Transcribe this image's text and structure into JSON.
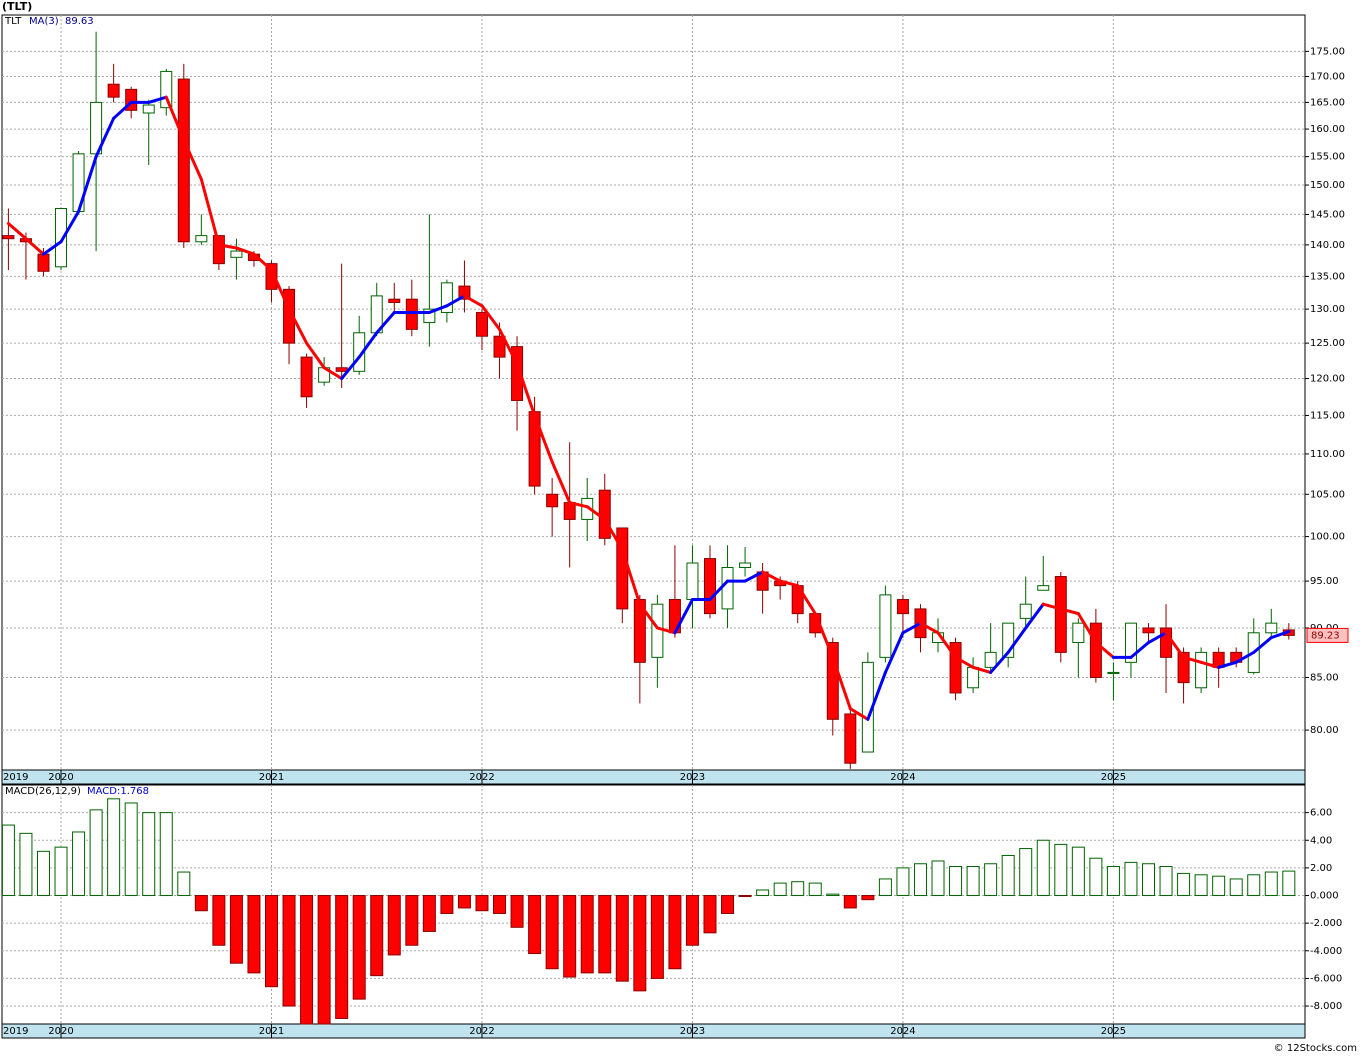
{
  "chart_data": [
    {
      "type": "candlestick",
      "title": "(TLT)",
      "ticker": "TLT",
      "categories": [
        "2019",
        null,
        null,
        "2020",
        null,
        null,
        null,
        null,
        null,
        null,
        null,
        null,
        null,
        null,
        null,
        "2021",
        null,
        null,
        null,
        null,
        null,
        null,
        null,
        null,
        null,
        null,
        null,
        "2022",
        null,
        null,
        null,
        null,
        null,
        null,
        null,
        null,
        null,
        null,
        null,
        "2023",
        null,
        null,
        null,
        null,
        null,
        null,
        null,
        null,
        null,
        null,
        null,
        "2024",
        null,
        null,
        null,
        null,
        null,
        null,
        null,
        null,
        null,
        null,
        null,
        "2025",
        null,
        null,
        null,
        null,
        null,
        null,
        null,
        null,
        null,
        null
      ],
      "open": [
        141.5,
        141,
        138.5,
        136.5,
        145.5,
        155.5,
        168.5,
        167.5,
        163,
        164,
        169.5,
        140.5,
        141.5,
        138,
        138.5,
        137,
        133,
        123,
        119.5,
        121.5,
        121,
        126.5,
        131.5,
        131.5,
        128,
        129.5,
        133.5,
        129.5,
        126,
        124.5,
        115.5,
        105,
        104,
        102,
        105.5,
        101,
        93,
        87,
        93,
        93,
        97.5,
        92,
        96.5,
        96,
        95,
        94.5,
        91.5,
        88.5,
        81.5,
        78,
        87,
        93,
        92,
        88.5,
        88.5,
        84,
        86,
        87,
        91,
        94,
        95.5,
        88.5,
        90.5,
        85.5,
        86.5,
        90,
        90,
        87.5,
        84,
        87.5,
        87.5,
        85.5,
        89.5,
        89.8
      ],
      "high": [
        146,
        142,
        139.5,
        146,
        156,
        179,
        172.5,
        168,
        165.5,
        171.5,
        172.5,
        145,
        141.5,
        141,
        139,
        137.5,
        133.5,
        123.5,
        123,
        137,
        129,
        134,
        134,
        134.5,
        145,
        134.5,
        137.5,
        130,
        128,
        126,
        117.5,
        107,
        111.5,
        107,
        107.5,
        101,
        93.5,
        93.5,
        99,
        99,
        99,
        99,
        98.8,
        97,
        95.5,
        95,
        91.5,
        89,
        82,
        87.5,
        94.5,
        93.5,
        92.5,
        91,
        89,
        87,
        90.5,
        90.5,
        95.5,
        97.8,
        96,
        91,
        92,
        86.5,
        90.5,
        90.5,
        92.5,
        88,
        88,
        88,
        88,
        91,
        92,
        90.5
      ],
      "low": [
        136,
        134.5,
        135,
        136,
        145,
        139,
        165,
        162,
        153.5,
        162.5,
        139.5,
        140,
        136,
        134.5,
        136.5,
        131,
        122,
        116,
        119,
        118.7,
        120.5,
        126,
        129.5,
        126,
        124.5,
        128,
        129.5,
        124,
        120,
        113,
        105,
        100,
        96.5,
        99.5,
        99,
        90.5,
        82.5,
        84,
        89,
        90,
        91,
        90,
        95.5,
        91.5,
        93,
        90.5,
        89,
        79.5,
        76.5,
        78,
        86.5,
        89,
        87.5,
        87.5,
        82.8,
        83.5,
        85.5,
        86,
        90,
        94,
        86.5,
        85,
        84.5,
        82.8,
        85,
        88.5,
        83.5,
        82.5,
        83.5,
        84,
        86,
        85.3,
        89,
        88.8
      ],
      "close": [
        141,
        140.5,
        135.8,
        146,
        155.5,
        165,
        166,
        163.5,
        164.5,
        171,
        140.5,
        141.5,
        137,
        139,
        137.5,
        133,
        125,
        117.5,
        121.5,
        121,
        126.5,
        132,
        131,
        127,
        130,
        134,
        131.5,
        126,
        123,
        117,
        106,
        103.5,
        102,
        104.5,
        99.8,
        92,
        86.5,
        92.5,
        89.5,
        97,
        91.5,
        96.5,
        97,
        94,
        94.5,
        91.5,
        89.5,
        81,
        77,
        86.5,
        93.5,
        91.5,
        89,
        89.5,
        83.5,
        86,
        87.5,
        90.5,
        92.5,
        94.5,
        87.5,
        90.5,
        85,
        85.5,
        90.5,
        89.5,
        87,
        84.5,
        87.5,
        86,
        86.5,
        89.5,
        90.5,
        89.23
      ],
      "up_color": "#006400",
      "down_color": "#ff0000",
      "ma": {
        "name": "MA(3)",
        "up_color": "#0000ff",
        "down_color": "#ff0000",
        "values": [
          143.5,
          141,
          138.5,
          140.5,
          145.5,
          155,
          162,
          165,
          165,
          166,
          158,
          151,
          140,
          139.5,
          138.5,
          136,
          130,
          125,
          121.5,
          120,
          123,
          126.5,
          129.5,
          129.5,
          129.5,
          130.5,
          132,
          130.5,
          127,
          122,
          115,
          109,
          104,
          103.5,
          102,
          98.5,
          92.5,
          90,
          89.5,
          93,
          93,
          95,
          95,
          96,
          95,
          94.5,
          91.5,
          87,
          82,
          81,
          85.5,
          89.5,
          90.5,
          89.5,
          87,
          86,
          85.5,
          87.5,
          90,
          92.5,
          92,
          91.5,
          88.5,
          87,
          87,
          88.5,
          89.5,
          87,
          86.5,
          86,
          86.5,
          87.5,
          89,
          89.63
        ]
      },
      "log": true,
      "ylim": [
        76.4,
        182.5
      ],
      "yticks": [
        {
          "value": 80,
          "label": "80.00"
        },
        {
          "value": 85,
          "label": "85.00"
        },
        {
          "value": 90,
          "label": "90.00"
        },
        {
          "value": 95,
          "label": "95.00"
        },
        {
          "value": 100,
          "label": "100.00"
        },
        {
          "value": 105,
          "label": "105.00"
        },
        {
          "value": 110,
          "label": "110.00"
        },
        {
          "value": 115,
          "label": "115.00"
        },
        {
          "value": 120,
          "label": "120.00"
        },
        {
          "value": 125,
          "label": "125.00"
        },
        {
          "value": 130,
          "label": "130.00"
        },
        {
          "value": 135,
          "label": "135.00"
        },
        {
          "value": 140,
          "label": "140.00"
        },
        {
          "value": 145,
          "label": "145.00"
        },
        {
          "value": 150,
          "label": "150.00"
        },
        {
          "value": 155,
          "label": "155.00"
        },
        {
          "value": 160,
          "label": "160.00"
        },
        {
          "value": 165,
          "label": "165.00"
        },
        {
          "value": 170,
          "label": "170.00"
        },
        {
          "value": 175,
          "label": "175.00"
        }
      ],
      "grid": true
    },
    {
      "type": "bar",
      "title": "MACD(26,12,9)",
      "last_label": "MACD:1.768",
      "categories": [
        "2019",
        null,
        null,
        "2020",
        null,
        null,
        null,
        null,
        null,
        null,
        null,
        null,
        null,
        null,
        null,
        "2021",
        null,
        null,
        null,
        null,
        null,
        null,
        null,
        null,
        null,
        null,
        null,
        "2022",
        null,
        null,
        null,
        null,
        null,
        null,
        null,
        null,
        null,
        null,
        null,
        "2023",
        null,
        null,
        null,
        null,
        null,
        null,
        null,
        null,
        null,
        null,
        null,
        "2024",
        null,
        null,
        null,
        null,
        null,
        null,
        null,
        null,
        null,
        null,
        null,
        "2025",
        null,
        null,
        null,
        null,
        null,
        null,
        null,
        null,
        null,
        null
      ],
      "values": [
        5.1,
        4.5,
        3.2,
        3.5,
        4.6,
        6.2,
        7.0,
        6.7,
        6.0,
        6.0,
        1.7,
        -1.1,
        -3.6,
        -4.9,
        -5.6,
        -6.6,
        -8.0,
        -9.3,
        -9.3,
        -8.9,
        -7.5,
        -5.8,
        -4.3,
        -3.6,
        -2.6,
        -1.3,
        -0.9,
        -1.1,
        -1.3,
        -2.3,
        -4.2,
        -5.3,
        -5.9,
        -5.6,
        -5.6,
        -6.2,
        -6.9,
        -6.0,
        -5.3,
        -3.6,
        -2.7,
        -1.3,
        -0.05,
        0.4,
        0.9,
        1.0,
        0.9,
        0.1,
        -0.9,
        -0.3,
        1.2,
        2.0,
        2.3,
        2.5,
        2.1,
        2.1,
        2.3,
        2.9,
        3.4,
        4.0,
        3.7,
        3.5,
        2.7,
        2.1,
        2.4,
        2.3,
        2.1,
        1.6,
        1.5,
        1.4,
        1.2,
        1.5,
        1.7,
        1.768
      ],
      "pos_color": "#006400",
      "neg_color": "#ff0000",
      "ylim": [
        -9.3,
        8.0
      ],
      "yticks": [
        {
          "value": -8,
          "label": "-8.000"
        },
        {
          "value": -6,
          "label": "-6.000"
        },
        {
          "value": -4,
          "label": "-4.000"
        },
        {
          "value": -2,
          "label": "-2.000"
        },
        {
          "value": 0,
          "label": "0.000"
        },
        {
          "value": 2,
          "label": "2.00"
        },
        {
          "value": 4,
          "label": "4.00"
        },
        {
          "value": 6,
          "label": "6.00"
        }
      ],
      "grid": true
    }
  ],
  "footer": "© 12Stocks.com"
}
